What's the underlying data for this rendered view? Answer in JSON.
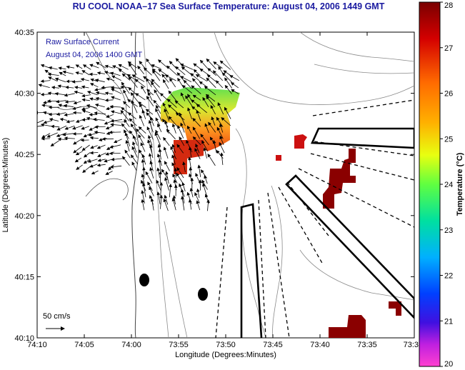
{
  "title": "RU COOL  NOAA–17  Sea Surface Temperature:  August 04, 2006 1449 GMT",
  "overlay": {
    "line1": "Raw Surface Current",
    "line2": "August 04, 2006 1400 GMT",
    "scale_label": "50 cm/s"
  },
  "axes": {
    "xlabel": "Longitude (Degrees:Minutes)",
    "ylabel": "Latitude (Degrees:Minutes)",
    "xticks": [
      "74:10",
      "74:05",
      "74:00",
      "73:55",
      "73:50",
      "73:45",
      "73:40",
      "73:35",
      "73:3"
    ],
    "yticks": [
      "40:35",
      "40:30",
      "40:25",
      "40:20",
      "40:15",
      "40:10"
    ]
  },
  "colorbar": {
    "label": "Temperature (°C)",
    "ticks": [
      "28",
      "27",
      "26",
      "25",
      "24",
      "23",
      "22",
      "21",
      "20"
    ],
    "min": 20,
    "max": 28
  },
  "chart_data": {
    "type": "heatmap",
    "title": "RU COOL  NOAA–17  Sea Surface Temperature:  August 04, 2006 1449 GMT",
    "xlabel": "Longitude (Degrees:Minutes)",
    "ylabel": "Latitude (Degrees:Minutes)",
    "colorbar_label": "Temperature (°C)",
    "colorbar_range": [
      20,
      28
    ],
    "features": [
      "sea surface temperature patches",
      "surface current vectors",
      "bathymetry contours",
      "shipping lane outlines"
    ]
  }
}
